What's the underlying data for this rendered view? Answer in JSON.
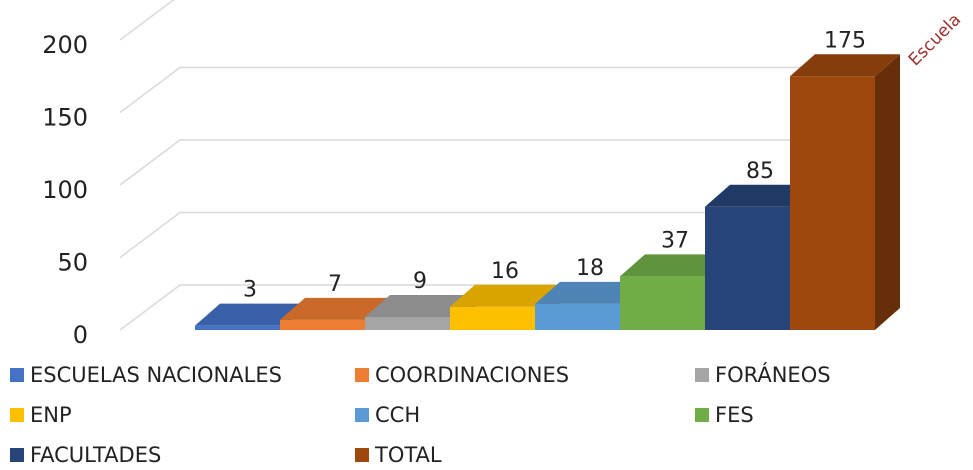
{
  "chart_data": {
    "type": "bar3d",
    "annotation": "Escuela",
    "ylim": [
      0,
      200
    ],
    "yticks": [
      0,
      50,
      100,
      150,
      200
    ],
    "grid": true,
    "legend": "bottom",
    "series": [
      {
        "name": "ESCUELAS NACIONALES",
        "color": "#4472c4",
        "values": [
          3
        ]
      },
      {
        "name": "COORDINACIONES",
        "color": "#ed7d31",
        "values": [
          7
        ]
      },
      {
        "name": "FORÁNEOS",
        "color": "#a5a5a5",
        "values": [
          9
        ]
      },
      {
        "name": "ENP",
        "color": "#ffc000",
        "values": [
          16
        ]
      },
      {
        "name": "CCH",
        "color": "#5b9bd5",
        "values": [
          18
        ]
      },
      {
        "name": "FES",
        "color": "#70ad47",
        "values": [
          37
        ]
      },
      {
        "name": "FACULTADES",
        "color": "#264478",
        "values": [
          85
        ]
      },
      {
        "name": "TOTAL",
        "color": "#9e480e",
        "values": [
          175
        ]
      }
    ]
  }
}
